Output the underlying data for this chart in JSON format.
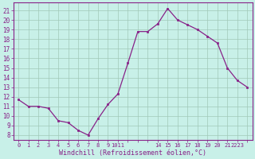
{
  "x": [
    0,
    1,
    2,
    3,
    4,
    5,
    6,
    7,
    8,
    9,
    10,
    11,
    12,
    13,
    14,
    15,
    16,
    17,
    18,
    19,
    20,
    21,
    22,
    23
  ],
  "y": [
    11.7,
    11.0,
    11.0,
    10.8,
    9.5,
    9.3,
    8.5,
    8.0,
    9.7,
    11.2,
    12.3,
    15.5,
    18.8,
    18.8,
    19.6,
    21.2,
    20.0,
    19.5,
    19.0,
    18.3,
    17.6,
    15.0,
    13.7,
    13.0
  ],
  "line_color": "#882288",
  "marker_color": "#882288",
  "bg_color": "#c8f0e8",
  "grid_color": "#a0c8b8",
  "xlabel": "Windchill (Refroidissement éolien,°C)",
  "ylabel_ticks": [
    8,
    9,
    10,
    11,
    12,
    13,
    14,
    15,
    16,
    17,
    18,
    19,
    20,
    21
  ],
  "xtick_positions": [
    0,
    1,
    2,
    3,
    4,
    5,
    6,
    7,
    8,
    9,
    10,
    14,
    15,
    16,
    17,
    18,
    19,
    20,
    21,
    22
  ],
  "xtick_labels": [
    "0",
    "1",
    "2",
    "3",
    "4",
    "5",
    "6",
    "7",
    "8",
    "9",
    "1011",
    "14",
    "15",
    "16",
    "17",
    "18",
    "19",
    "20",
    "21",
    "2223"
  ],
  "ylim": [
    7.5,
    21.8
  ],
  "xlim": [
    -0.5,
    23.5
  ]
}
